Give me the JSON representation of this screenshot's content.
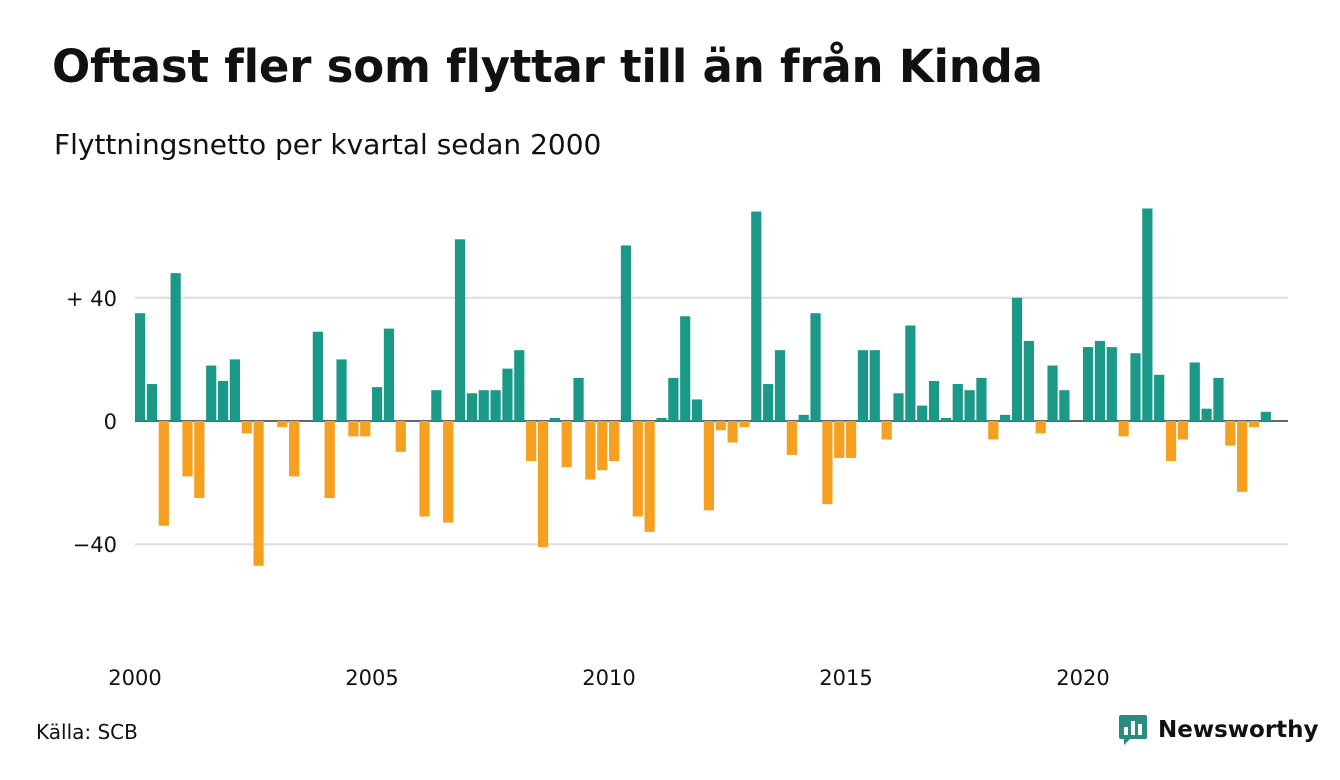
{
  "title": "Oftast fler som flyttar till än från Kinda",
  "subtitle": "Flyttningsnetto per kvartal sedan 2000",
  "source": "Källa: SCB",
  "brand": {
    "name": "Newsworthy",
    "icon": "newsworthy-logo-icon"
  },
  "colors": {
    "positive": "#1a9888",
    "negative": "#f5a01e",
    "brand": "#2a8c80",
    "grid": "#dddddd"
  },
  "chart_data": {
    "type": "bar",
    "title": "Oftast fler som flyttar till än från Kinda",
    "subtitle": "Flyttningsnetto per kvartal sedan 2000",
    "xlabel": "",
    "ylabel": "",
    "x_start": "2000 Q1",
    "x_ticks": [
      "2000",
      "2005",
      "2010",
      "2015",
      "2020"
    ],
    "y_ticks": [
      {
        "value": 40,
        "label": "+ 40"
      },
      {
        "value": 0,
        "label": "0"
      },
      {
        "value": -40,
        "label": "−40"
      }
    ],
    "ylim": [
      -70,
      72
    ],
    "grid": true,
    "values": [
      35,
      12,
      -34,
      48,
      -18,
      -25,
      18,
      13,
      20,
      -4,
      -47,
      0,
      -2,
      -18,
      0,
      29,
      -25,
      20,
      -5,
      -5,
      11,
      30,
      -10,
      0,
      -31,
      10,
      -33,
      59,
      9,
      10,
      10,
      17,
      23,
      -13,
      -41,
      1,
      -15,
      14,
      -19,
      -16,
      -13,
      57,
      -31,
      -36,
      1,
      14,
      34,
      7,
      -29,
      -3,
      -7,
      -2,
      68,
      12,
      23,
      -11,
      2,
      35,
      -27,
      -12,
      -12,
      23,
      23,
      -6,
      9,
      31,
      5,
      13,
      1,
      12,
      10,
      14,
      -6,
      2,
      40,
      26,
      -4,
      18,
      10,
      0,
      24,
      26,
      24,
      -5,
      22,
      69,
      15,
      -13,
      -6,
      19,
      4,
      14,
      -8,
      -23,
      -2,
      3
    ]
  }
}
